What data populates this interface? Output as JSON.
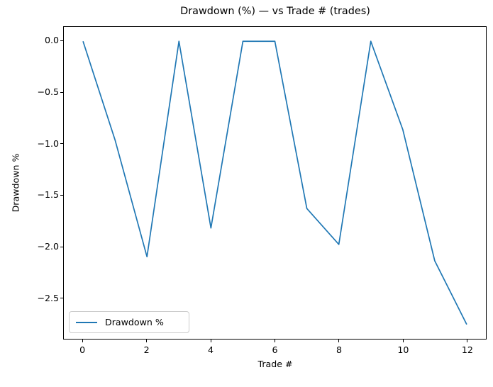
{
  "chart_data": {
    "type": "line",
    "title": "Drawdown (%) — vs Trade # (trades)",
    "xlabel": "Trade #",
    "ylabel": "Drawdown %",
    "series": [
      {
        "name": "Drawdown %",
        "color": "#1f77b4",
        "x": [
          0,
          1,
          2,
          3,
          4,
          5,
          6,
          7,
          8,
          9,
          10,
          11,
          12
        ],
        "y": [
          0.0,
          -0.96,
          -2.1,
          0.0,
          -1.82,
          0.0,
          0.0,
          -1.63,
          -1.98,
          0.0,
          -0.86,
          -2.14,
          -2.76
        ]
      }
    ],
    "xlim": [
      -0.6,
      12.6
    ],
    "ylim": [
      -2.9,
      0.14
    ],
    "xticks": [
      0,
      2,
      4,
      6,
      8,
      10,
      12
    ],
    "xtick_labels": [
      "0",
      "2",
      "4",
      "6",
      "8",
      "10",
      "12"
    ],
    "yticks": [
      0.0,
      -0.5,
      -1.0,
      -1.5,
      -2.0,
      -2.5
    ],
    "ytick_labels": [
      "0.0",
      "−0.5",
      "−1.0",
      "−1.5",
      "−2.0",
      "−2.5"
    ],
    "grid": false,
    "legend": {
      "position": "lower left",
      "entries": [
        "Drawdown %"
      ]
    }
  }
}
